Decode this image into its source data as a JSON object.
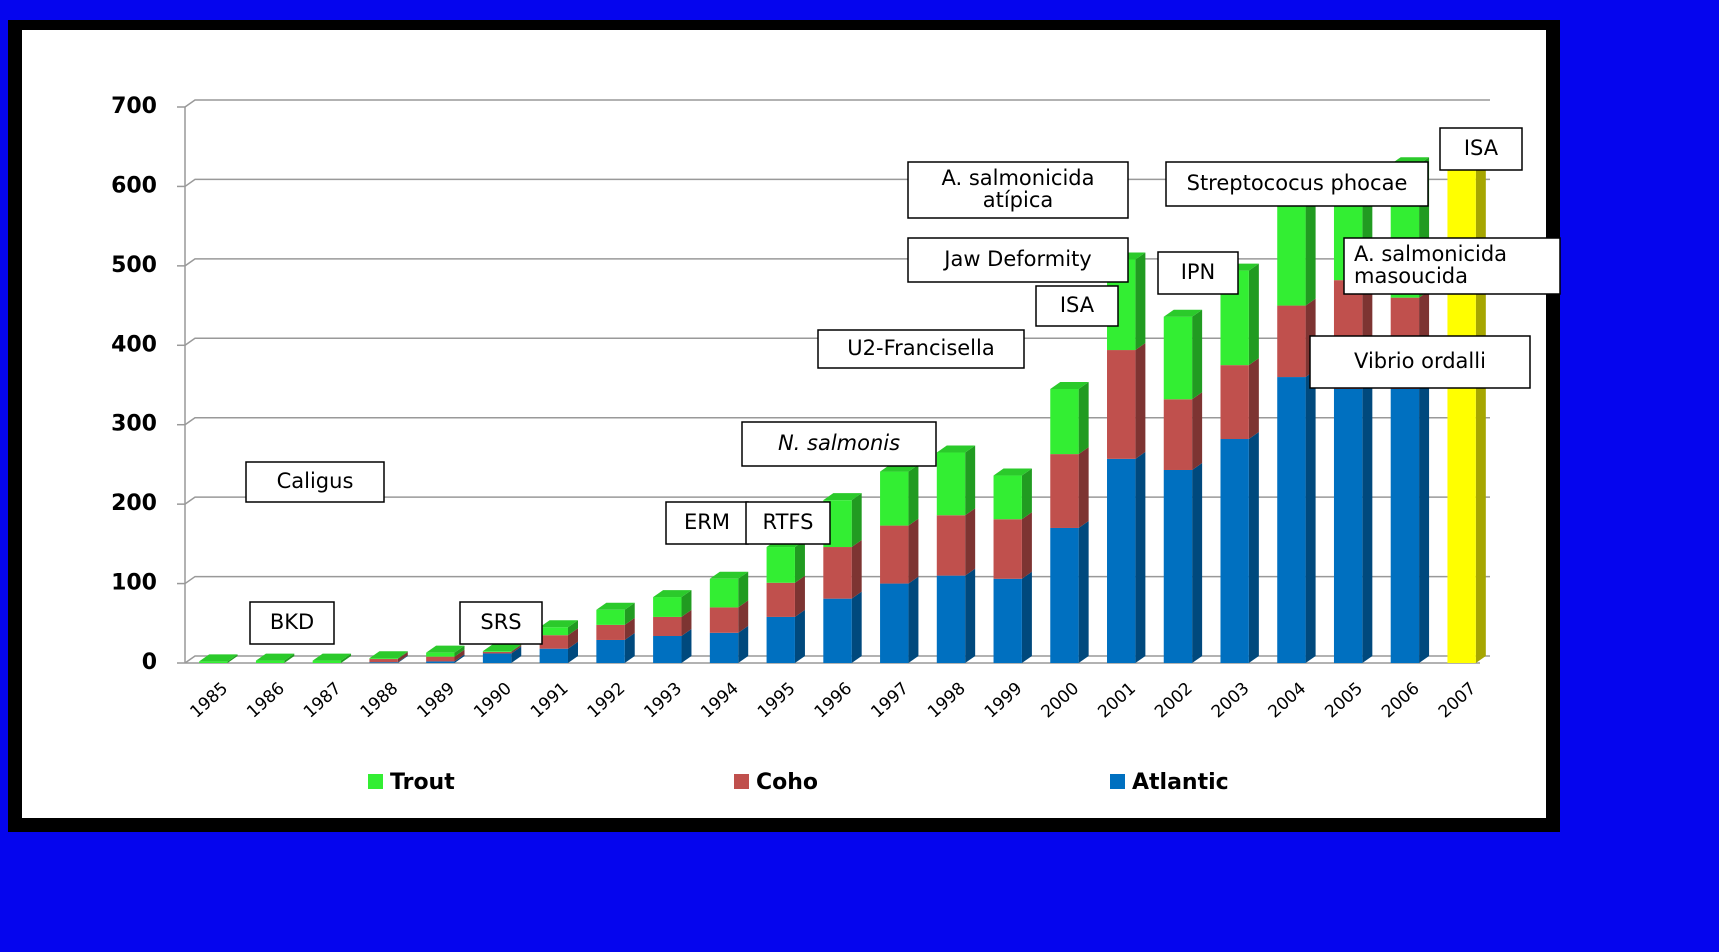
{
  "chart_data": {
    "type": "bar",
    "stacked": true,
    "categories": [
      "1985",
      "1986",
      "1987",
      "1988",
      "1989",
      "1990",
      "1991",
      "1992",
      "1993",
      "1994",
      "1995",
      "1996",
      "1997",
      "1998",
      "1999",
      "2000",
      "2001",
      "2002",
      "2003",
      "2004",
      "2005",
      "2006",
      "2007"
    ],
    "series": [
      {
        "name": "Atlantic",
        "color": "#0070c0",
        "values": [
          0,
          0,
          0,
          1,
          2,
          12,
          18,
          29,
          34,
          38,
          58,
          81,
          100,
          110,
          106,
          170,
          257,
          243,
          282,
          360,
          345,
          345,
          null
        ]
      },
      {
        "name": "Coho",
        "color": "#c0504d",
        "values": [
          0,
          0,
          0,
          4,
          6,
          2,
          17,
          19,
          24,
          32,
          43,
          65,
          73,
          76,
          75,
          93,
          137,
          89,
          93,
          90,
          137,
          115,
          null
        ]
      },
      {
        "name": "Trout",
        "color": "#33ee33",
        "values": [
          2,
          3,
          3,
          1,
          5,
          1,
          10,
          19,
          25,
          36,
          45,
          59,
          68,
          79,
          55,
          82,
          114,
          104,
          119,
          137,
          108,
          168,
          null
        ]
      },
      {
        "color": "#ffff00",
        "values": [
          null,
          null,
          null,
          null,
          null,
          null,
          null,
          null,
          null,
          null,
          null,
          null,
          null,
          null,
          null,
          null,
          null,
          null,
          null,
          null,
          null,
          null,
          630
        ]
      }
    ],
    "ylim": [
      0,
      700
    ],
    "yticks": [
      0,
      100,
      200,
      300,
      400,
      500,
      600,
      700
    ],
    "grid": true,
    "legend": "bottom",
    "annotations": [
      [
        "Caligus"
      ],
      [
        "BKD"
      ],
      [
        "SRS"
      ],
      [
        "ERM"
      ],
      [
        "RTFS"
      ],
      [
        "N. salmonis"
      ],
      [
        "U2-Francisella"
      ],
      [
        "ISA"
      ],
      [
        "Jaw Deformity"
      ],
      [
        "A. salmonicida",
        "atípica"
      ],
      [
        "IPN"
      ],
      [
        "Streptococus phocae"
      ],
      [
        "ISA"
      ],
      [
        "A. salmonicida",
        "masoucida"
      ],
      [
        "Vibrio ordalli"
      ]
    ]
  }
}
